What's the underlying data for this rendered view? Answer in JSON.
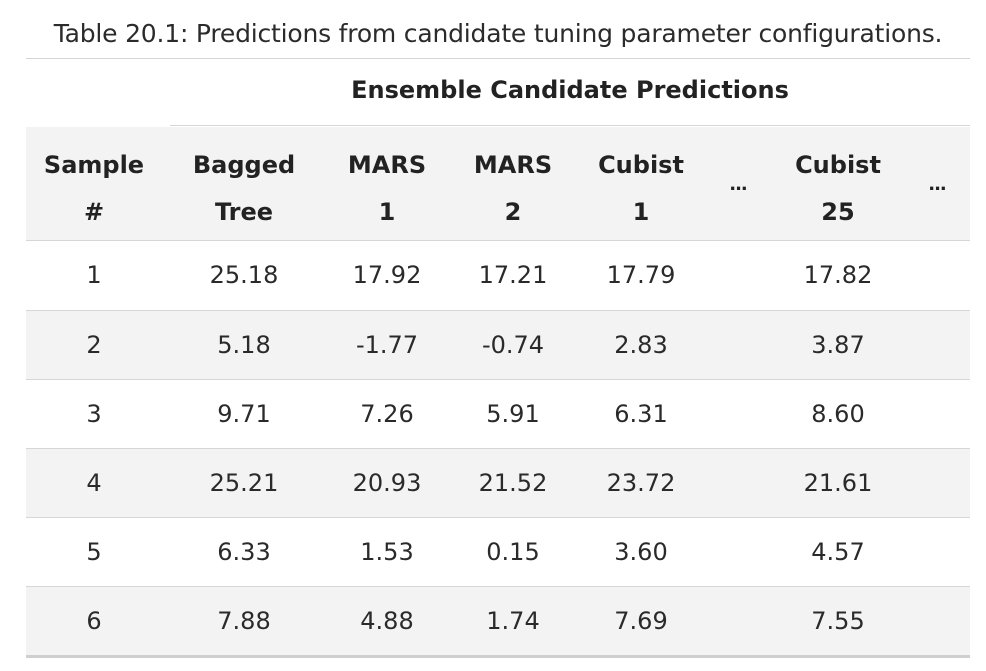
{
  "caption": "Table 20.1: Predictions from candidate tuning parameter configurations.",
  "spanner": "Ensemble Candidate Predictions",
  "headers": {
    "sample": [
      "Sample",
      "#"
    ],
    "bagged_tree": [
      "Bagged",
      "Tree"
    ],
    "mars_1": [
      "MARS",
      "1"
    ],
    "mars_2": [
      "MARS",
      "2"
    ],
    "cubist_1": [
      "Cubist",
      "1"
    ],
    "ellipsis_1": "...",
    "cubist_25": [
      "Cubist",
      "25"
    ],
    "ellipsis_2": "..."
  },
  "rows": [
    {
      "sample": "1",
      "bagged_tree": "25.18",
      "mars_1": "17.92",
      "mars_2": "17.21",
      "cubist_1": "17.79",
      "cubist_25": "17.82"
    },
    {
      "sample": "2",
      "bagged_tree": "5.18",
      "mars_1": "-1.77",
      "mars_2": "-0.74",
      "cubist_1": "2.83",
      "cubist_25": "3.87"
    },
    {
      "sample": "3",
      "bagged_tree": "9.71",
      "mars_1": "7.26",
      "mars_2": "5.91",
      "cubist_1": "6.31",
      "cubist_25": "8.60"
    },
    {
      "sample": "4",
      "bagged_tree": "25.21",
      "mars_1": "20.93",
      "mars_2": "21.52",
      "cubist_1": "23.72",
      "cubist_25": "21.61"
    },
    {
      "sample": "5",
      "bagged_tree": "6.33",
      "mars_1": "1.53",
      "mars_2": "0.15",
      "cubist_1": "3.60",
      "cubist_25": "4.57"
    },
    {
      "sample": "6",
      "bagged_tree": "7.88",
      "mars_1": "4.88",
      "mars_2": "1.74",
      "cubist_1": "7.69",
      "cubist_25": "7.55"
    }
  ]
}
